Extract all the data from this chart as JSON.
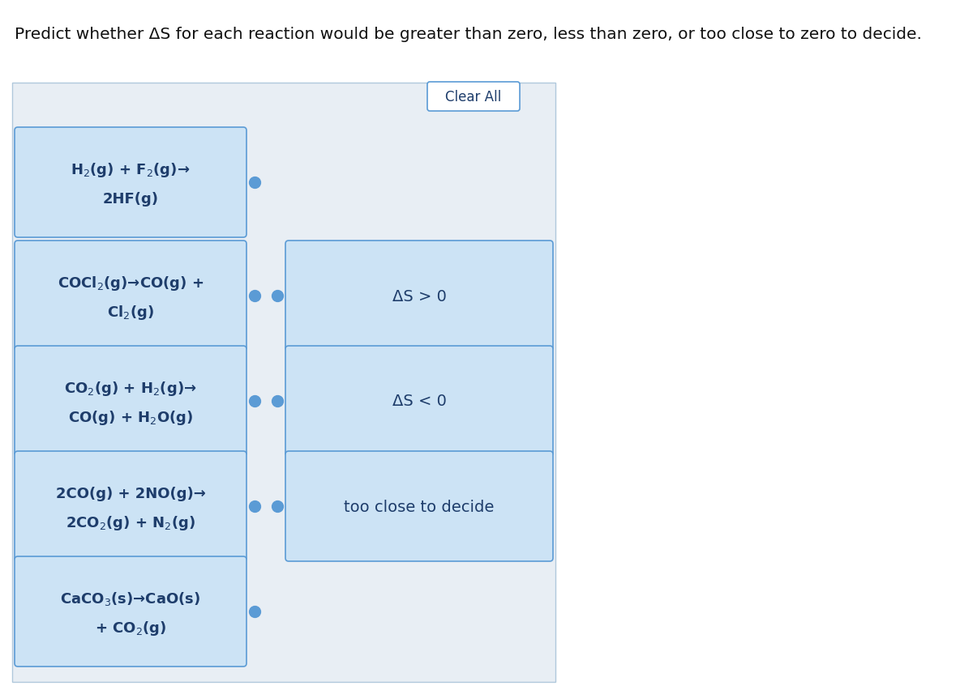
{
  "title": "Predict whether ΔS for each reaction would be greater than zero, less than zero, or too close to zero to decide.",
  "title_fontsize": 14.5,
  "title_color": "#111111",
  "background_color": "#ffffff",
  "panel_bg": "#e8eef4",
  "panel_border": "#b0c8dc",
  "box_fill": "#cce3f5",
  "box_border": "#5b9bd5",
  "box_text_color": "#1e3d6b",
  "answer_fill": "#cce3f5",
  "answer_border": "#5b9bd5",
  "clear_all_fill": "#ffffff",
  "clear_all_border": "#5b9bd5",
  "dot_color": "#5b9bd5",
  "reactions": [
    {
      "line1": "H$_2$(g) + F$_2$(g)→",
      "line2": "2HF(g)",
      "answer": null
    },
    {
      "line1": "COCl$_2$(g)→CO(g) +",
      "line2": "Cl$_2$(g)",
      "answer": "ΔS > 0"
    },
    {
      "line1": "CO$_2$(g) + H$_2$(g)→",
      "line2": "CO(g) + H$_2$O(g)",
      "answer": "ΔS < 0"
    },
    {
      "line1": "2CO(g) + 2NO(g)→",
      "line2": "2CO$_2$(g) + N$_2$(g)",
      "answer": "too close to decide"
    },
    {
      "line1": "CaCO$_3$(s)→CaO(s)",
      "line2": "+ CO$_2$(g)",
      "answer": null
    }
  ],
  "reaction_fontsize": 13,
  "answer_fontsize": 14
}
